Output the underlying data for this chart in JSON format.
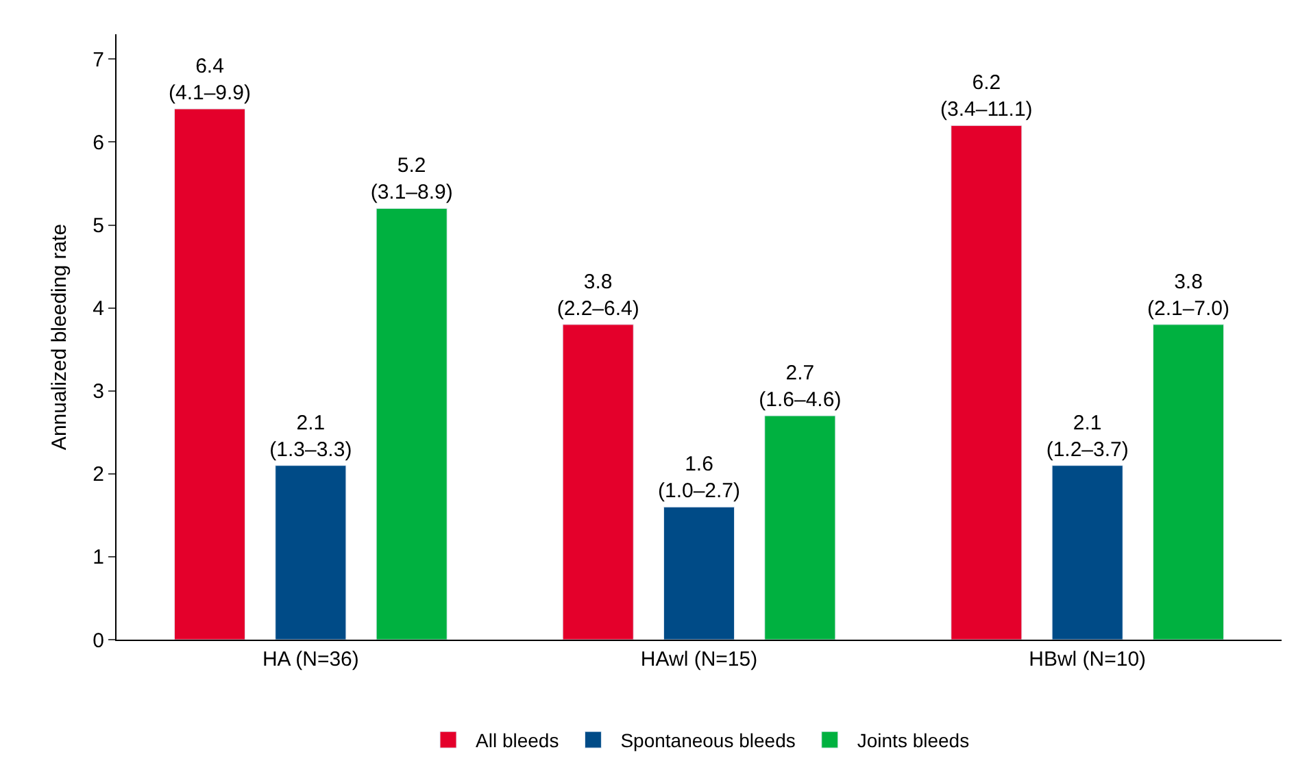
{
  "chart_data": {
    "type": "bar",
    "ylabel": "Annualized bleeding rate",
    "categories": [
      "HA (N=36)",
      "HAwl (N=15)",
      "HBwl (N=10)"
    ],
    "series": [
      {
        "name": "All bleeds",
        "color": "#e4002b",
        "values": [
          6.4,
          3.8,
          6.2
        ],
        "value_labels": [
          "6.4\n(4.1–9.9)",
          "3.8\n(2.2–6.4)",
          "6.2\n(3.4–11.1)"
        ]
      },
      {
        "name": "Spontaneous bleeds",
        "color": "#004b87",
        "values": [
          2.1,
          1.6,
          2.1
        ],
        "value_labels": [
          "2.1\n(1.3–3.3)",
          "1.6\n(1.0–2.7)",
          "2.1\n(1.2–3.7)"
        ]
      },
      {
        "name": "Joints bleeds",
        "color": "#00b140",
        "values": [
          5.2,
          2.7,
          3.8
        ],
        "value_labels": [
          "5.2\n(3.1–8.9)",
          "2.7\n(1.6–4.6)",
          "3.8\n(2.1–7.0)"
        ]
      }
    ],
    "ylim": [
      0,
      7.3
    ],
    "yticks": [
      0,
      1,
      2,
      3,
      4,
      5,
      6,
      7
    ],
    "legend": "bottom"
  }
}
